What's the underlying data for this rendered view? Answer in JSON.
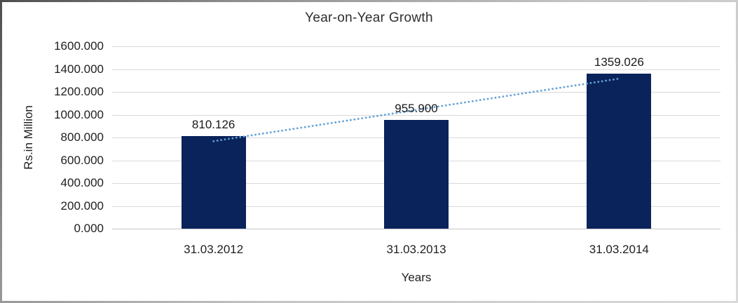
{
  "chart_data": {
    "type": "bar",
    "title": "Year-on-Year Growth",
    "xlabel": "Years",
    "ylabel": "Rs.in Million",
    "categories": [
      "31.03.2012",
      "31.03.2013",
      "31.03.2014"
    ],
    "values": [
      810.126,
      955.9,
      1359.026
    ],
    "data_labels": [
      "810.126",
      "955.900",
      "1359.026"
    ],
    "ytick_labels": [
      "1600.000",
      "1400.000",
      "1200.000",
      "1000.000",
      "800.000",
      "600.000",
      "400.000",
      "200.000",
      "0.000"
    ],
    "ylim": [
      0,
      1600
    ],
    "ytick_step": 200,
    "grid": true,
    "legend": "none",
    "series_name": "Year-on-Year Growth",
    "bar_color": "#0A235A",
    "trendline": {
      "type": "linear",
      "style": "dotted",
      "color": "#62A0D6"
    },
    "gridline_color": "#D9D9D9",
    "axis_line_color": "#C6C6C6",
    "text_color": "#1F1F1F",
    "background_color": "#FFFFFF"
  }
}
